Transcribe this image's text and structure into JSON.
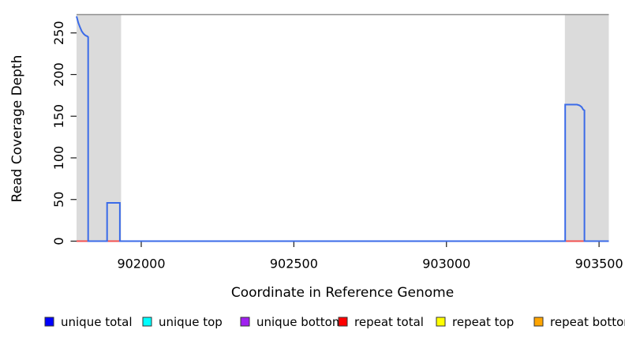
{
  "chart_data": {
    "type": "line",
    "title": "",
    "xlabel": "Coordinate in Reference Genome",
    "ylabel": "Read Coverage Depth",
    "xlim": [
      901788,
      903532
    ],
    "ylim": [
      0,
      272
    ],
    "xticks": [
      902000,
      902500,
      903000,
      903500
    ],
    "yticks": [
      0,
      50,
      100,
      150,
      200,
      250
    ],
    "grid": false,
    "repeat_regions": [
      {
        "name": "repeat-region-left",
        "x1": 901788,
        "x2": 901934
      },
      {
        "name": "repeat-region-right",
        "x1": 903388,
        "x2": 903532
      }
    ],
    "series": [
      {
        "name": "unique bottom",
        "color": "#A020F0",
        "render_color": "#7B68EE",
        "width": 2,
        "segments": [
          [
            [
              901788,
              0
            ],
            [
              903532,
              0
            ]
          ]
        ]
      },
      {
        "name": "repeat total",
        "color": "#FF0000",
        "render_color": "#F25252",
        "width": 2,
        "segments": [
          [
            [
              901788,
              0
            ],
            [
              901932,
              0
            ]
          ],
          [
            [
              903389,
              0
            ],
            [
              903453,
              0
            ]
          ]
        ]
      },
      {
        "name": "unique total",
        "color": "#0000FF",
        "render_color": "#3B6BE8",
        "width": 2,
        "segments": [
          [
            [
              901788,
              270
            ],
            [
              901794,
              262
            ],
            [
              901799,
              257
            ],
            [
              901805,
              252
            ],
            [
              901811,
              249
            ],
            [
              901817,
              247
            ],
            [
              901823,
              246
            ],
            [
              901826,
              245
            ],
            [
              901826,
              0
            ],
            [
              901888,
              0
            ],
            [
              901888,
              46
            ],
            [
              901930,
              46
            ],
            [
              901930,
              0
            ],
            [
              903389,
              0
            ],
            [
              903389,
              164
            ],
            [
              903428,
              164
            ],
            [
              903436,
              163
            ],
            [
              903443,
              161
            ],
            [
              903448,
              158
            ],
            [
              903452,
              157
            ],
            [
              903452,
              0
            ],
            [
              903532,
              0
            ]
          ]
        ]
      }
    ],
    "legend_position": "bottom"
  },
  "legend": {
    "items": [
      {
        "label": "unique total",
        "color": "#0000FF"
      },
      {
        "label": "unique top",
        "color": "#00FFFF"
      },
      {
        "label": "unique bottom",
        "color": "#A020F0"
      },
      {
        "label": "repeat total",
        "color": "#FF0000"
      },
      {
        "label": "repeat top",
        "color": "#FFFF00"
      },
      {
        "label": "repeat bottom",
        "color": "#FFA500"
      }
    ]
  },
  "style_colors": {
    "repeat_region_fill": "#DBDBDB",
    "plot_top_border": "#8E8E8E",
    "axis_tick": "#1a1a1a"
  }
}
